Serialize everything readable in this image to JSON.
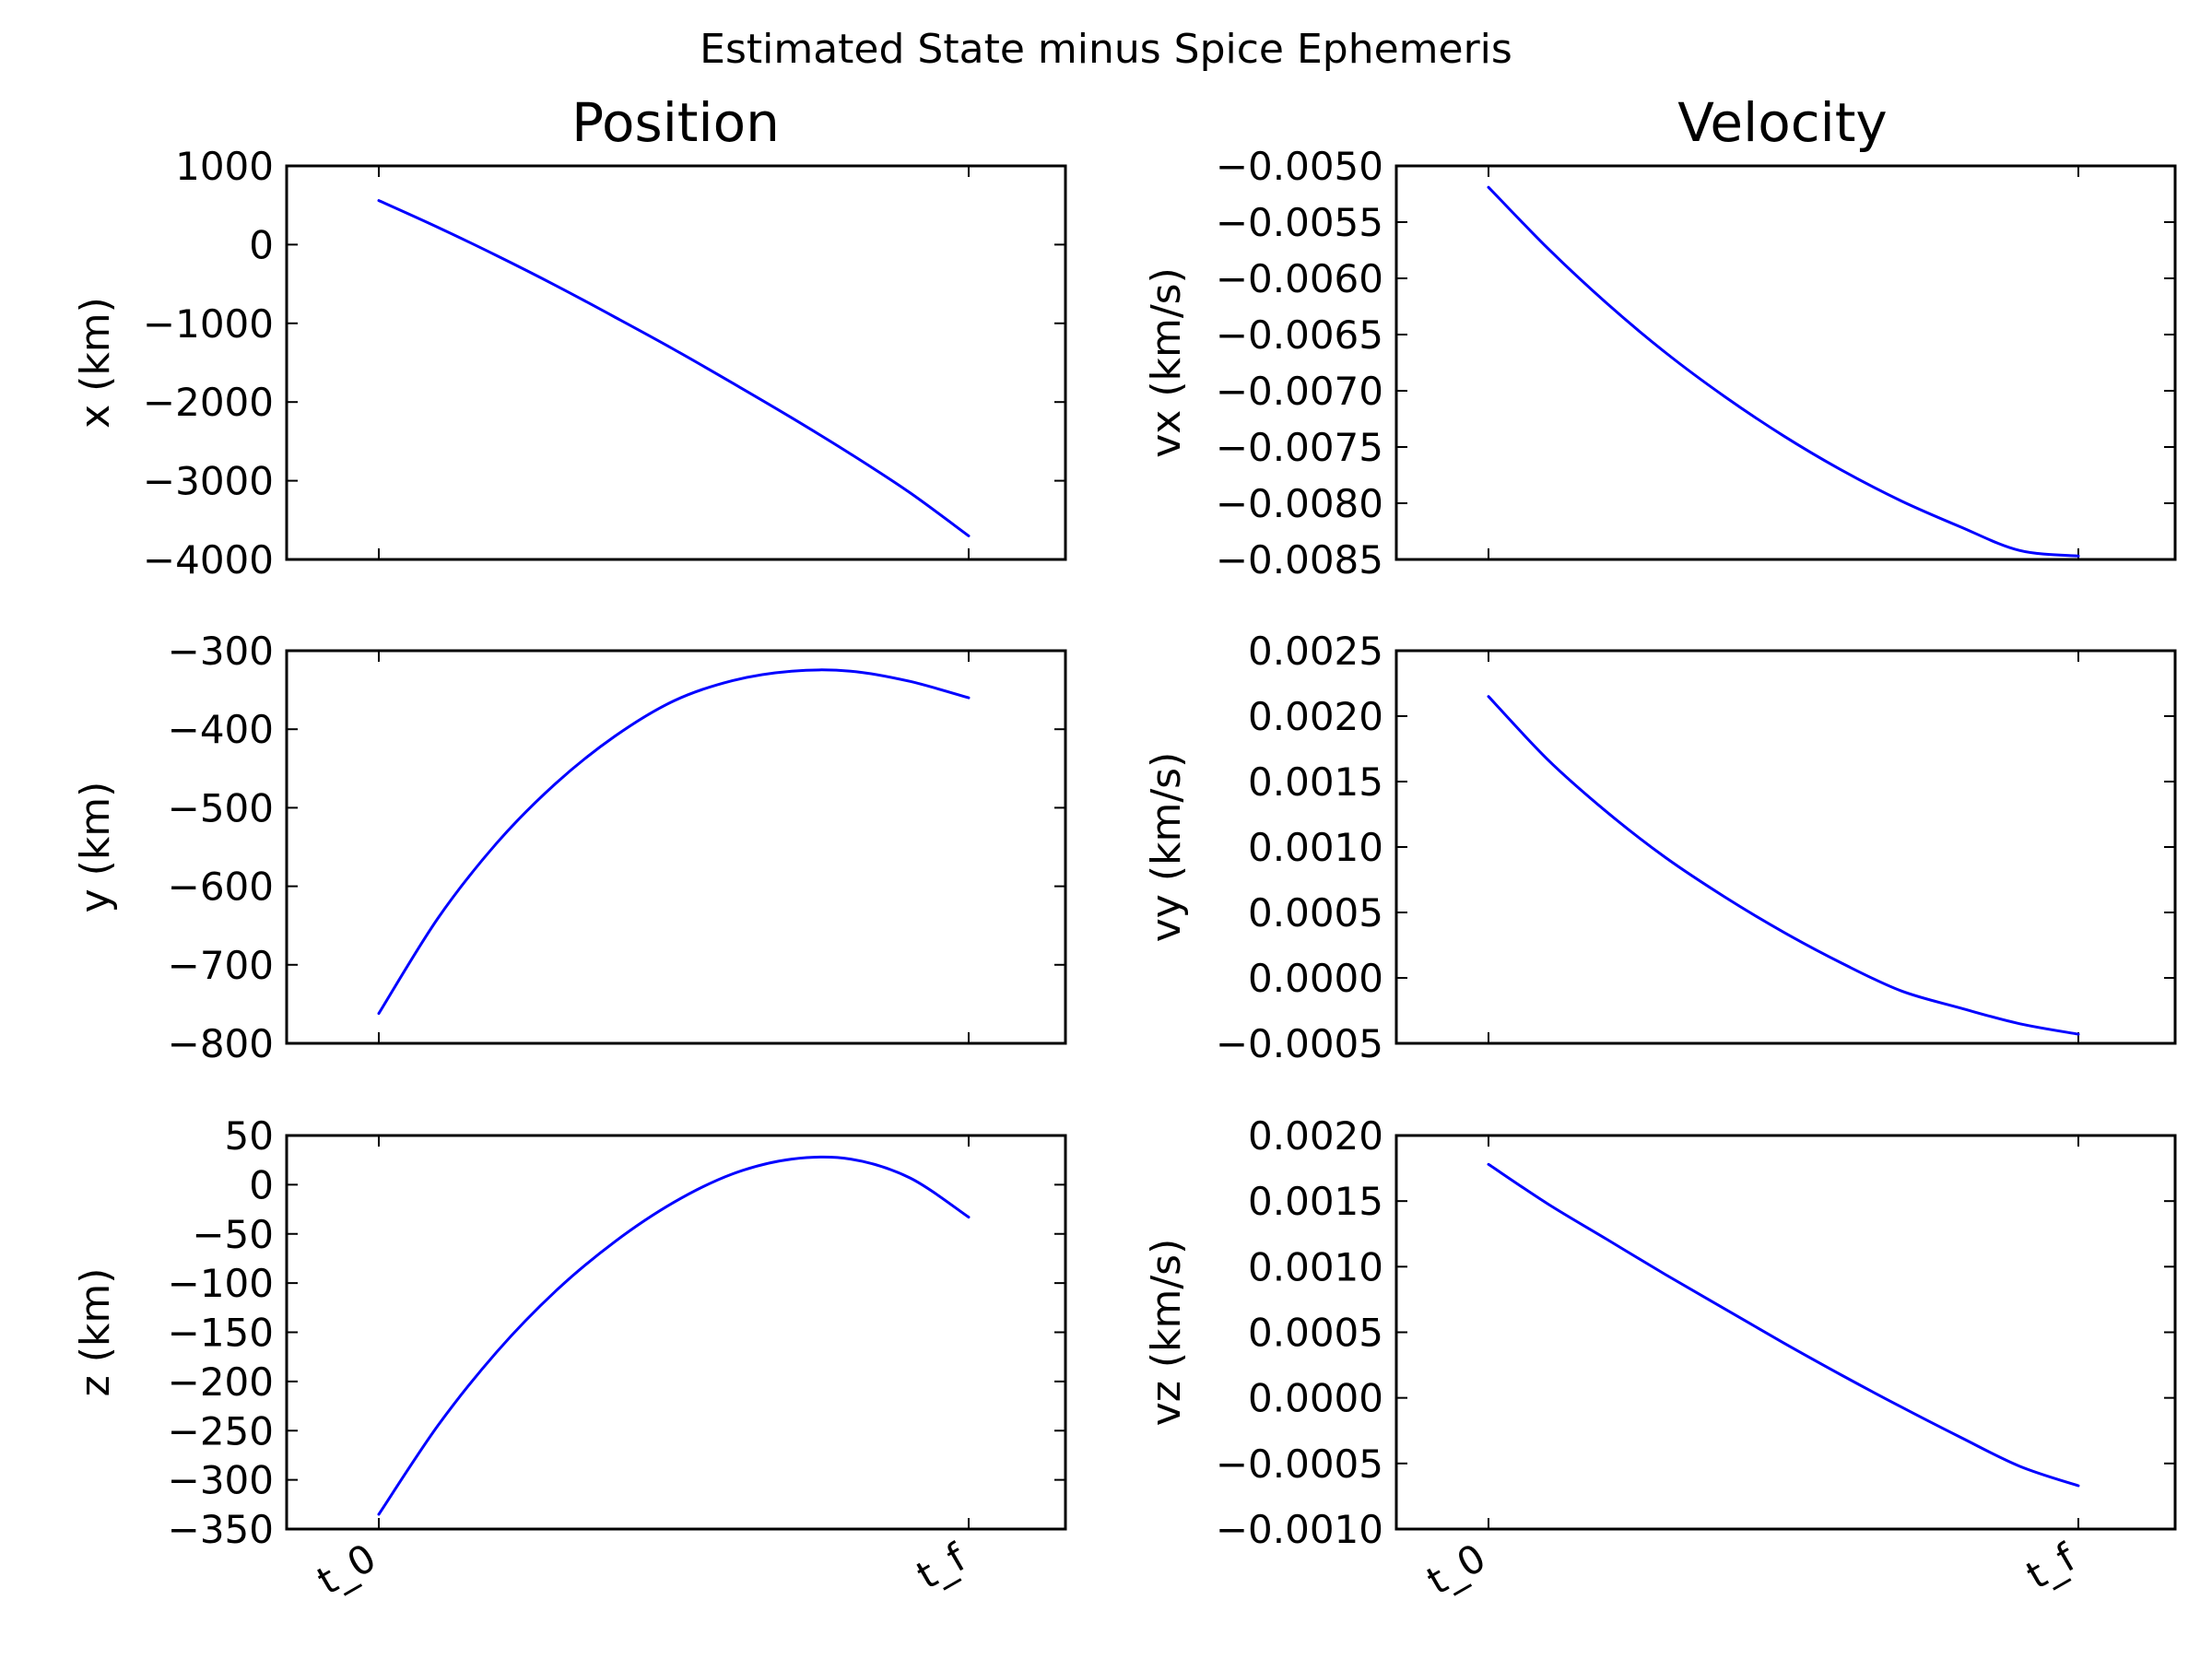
{
  "figure": {
    "suptitle": "Estimated State minus Spice Ephemeris",
    "column_titles": [
      "Position",
      "Velocity"
    ],
    "line_color": "#0000ff"
  },
  "chart_data": [
    {
      "type": "line",
      "ylabel": "x (km)",
      "ylim": [
        -4000,
        1000
      ],
      "yticks": [
        1000,
        0,
        -1000,
        -2000,
        -3000,
        -4000
      ],
      "ytick_labels": [
        "1000",
        "0",
        "−1000",
        "−2000",
        "−3000",
        "−4000"
      ],
      "xticks": [
        "t_0",
        "t_f"
      ],
      "show_xticklabels": false,
      "x": [
        0,
        0.1,
        0.2,
        0.3,
        0.4,
        0.5,
        0.6,
        0.7,
        0.8,
        0.9,
        1.0
      ],
      "y": [
        560,
        220,
        -140,
        -520,
        -920,
        -1330,
        -1760,
        -2200,
        -2660,
        -3150,
        -3700
      ]
    },
    {
      "type": "line",
      "ylabel": "vx (km/s)",
      "ylim": [
        -0.0085,
        -0.005
      ],
      "yticks": [
        -0.005,
        -0.0055,
        -0.006,
        -0.0065,
        -0.007,
        -0.0075,
        -0.008,
        -0.0085
      ],
      "ytick_labels": [
        "−0.0050",
        "−0.0055",
        "−0.0060",
        "−0.0065",
        "−0.0070",
        "−0.0075",
        "−0.0080",
        "−0.0085"
      ],
      "xticks": [
        "t_0",
        "t_f"
      ],
      "show_xticklabels": false,
      "x": [
        0,
        0.1,
        0.2,
        0.3,
        0.4,
        0.5,
        0.6,
        0.7,
        0.8,
        0.9,
        1.0
      ],
      "y": [
        -0.00519,
        -0.00573,
        -0.00622,
        -0.00666,
        -0.00705,
        -0.0074,
        -0.00771,
        -0.00798,
        -0.00821,
        -0.00842,
        -0.00847
      ]
    },
    {
      "type": "line",
      "ylabel": "y (km)",
      "ylim": [
        -800,
        -300
      ],
      "yticks": [
        -300,
        -400,
        -500,
        -600,
        -700,
        -800
      ],
      "ytick_labels": [
        "−300",
        "−400",
        "−500",
        "−600",
        "−700",
        "−800"
      ],
      "xticks": [
        "t_0",
        "t_f"
      ],
      "show_xticklabels": false,
      "x": [
        0,
        0.1,
        0.2,
        0.3,
        0.4,
        0.5,
        0.6,
        0.7,
        0.8,
        0.9,
        1.0
      ],
      "y": [
        -762,
        -641,
        -545,
        -469,
        -409,
        -364,
        -338,
        -326,
        -326,
        -339,
        -360
      ]
    },
    {
      "type": "line",
      "ylabel": "vy (km/s)",
      "ylim": [
        -0.0005,
        0.0025
      ],
      "yticks": [
        0.0025,
        0.002,
        0.0015,
        0.001,
        0.0005,
        0.0,
        -0.0005
      ],
      "ytick_labels": [
        "0.0025",
        "0.0020",
        "0.0015",
        "0.0010",
        "0.0005",
        "0.0000",
        "−0.0005"
      ],
      "xticks": [
        "t_0",
        "t_f"
      ],
      "show_xticklabels": false,
      "x": [
        0,
        0.1,
        0.2,
        0.3,
        0.4,
        0.5,
        0.6,
        0.7,
        0.8,
        0.9,
        1.0
      ],
      "y": [
        0.00215,
        0.00167,
        0.00127,
        0.00092,
        0.00062,
        0.00035,
        0.00011,
        -0.0001,
        -0.00023,
        -0.00035,
        -0.00043
      ]
    },
    {
      "type": "line",
      "ylabel": "z (km)",
      "ylim": [
        -350,
        50
      ],
      "yticks": [
        50,
        0,
        -50,
        -100,
        -150,
        -200,
        -250,
        -300,
        -350
      ],
      "ytick_labels": [
        "50",
        "0",
        "−50",
        "−100",
        "−150",
        "−200",
        "−250",
        "−300",
        "−350"
      ],
      "xticks": [
        "t_0",
        "t_f"
      ],
      "show_xticklabels": true,
      "x": [
        0,
        0.1,
        0.2,
        0.3,
        0.4,
        0.5,
        0.6,
        0.7,
        0.8,
        0.9,
        1.0
      ],
      "y": [
        -335,
        -245,
        -170,
        -108,
        -58,
        -18,
        11,
        26,
        26,
        7,
        -33
      ]
    },
    {
      "type": "line",
      "ylabel": "vz (km/s)",
      "ylim": [
        -0.001,
        0.002
      ],
      "yticks": [
        0.002,
        0.0015,
        0.001,
        0.0005,
        0.0,
        -0.0005,
        -0.001
      ],
      "ytick_labels": [
        "0.0020",
        "0.0015",
        "0.0010",
        "0.0005",
        "0.0000",
        "−0.0005",
        "−0.0010"
      ],
      "xticks": [
        "t_0",
        "t_f"
      ],
      "show_xticklabels": true,
      "x": [
        0,
        0.1,
        0.2,
        0.3,
        0.4,
        0.5,
        0.6,
        0.7,
        0.8,
        0.9,
        1.0
      ],
      "y": [
        0.00178,
        0.00148,
        0.00121,
        0.00094,
        0.00068,
        0.00042,
        0.00017,
        -7e-05,
        -0.0003,
        -0.00052,
        -0.00067
      ]
    }
  ]
}
